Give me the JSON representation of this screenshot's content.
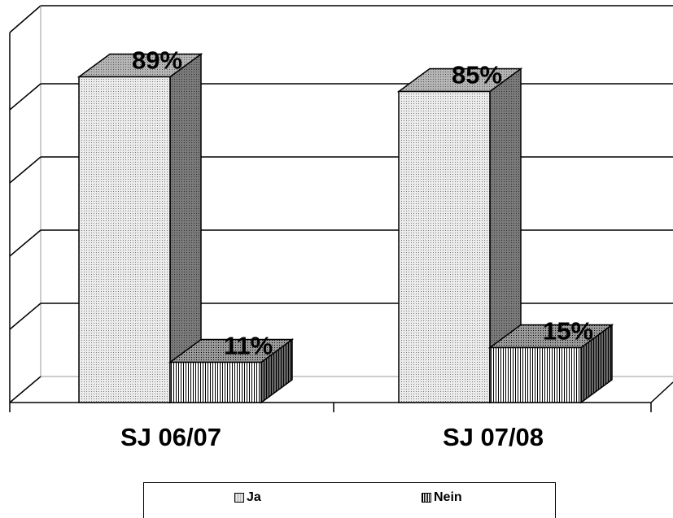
{
  "chart_data": {
    "type": "bar",
    "categories": [
      "SJ 06/07",
      "SJ 07/08"
    ],
    "series": [
      {
        "name": "Ja",
        "values": [
          89,
          85
        ],
        "labels": [
          "89%",
          "85%"
        ]
      },
      {
        "name": "Nein",
        "values": [
          11,
          15
        ],
        "labels": [
          "11%",
          "15%"
        ]
      }
    ],
    "ylim": [
      0,
      100
    ],
    "grid": true,
    "legend_position": "bottom",
    "colors": {
      "ja_fill": "#e6e6e6",
      "ja_side": "#8a8a8a",
      "nein_fill": "#ffffff",
      "nein_side": "#555555"
    }
  }
}
